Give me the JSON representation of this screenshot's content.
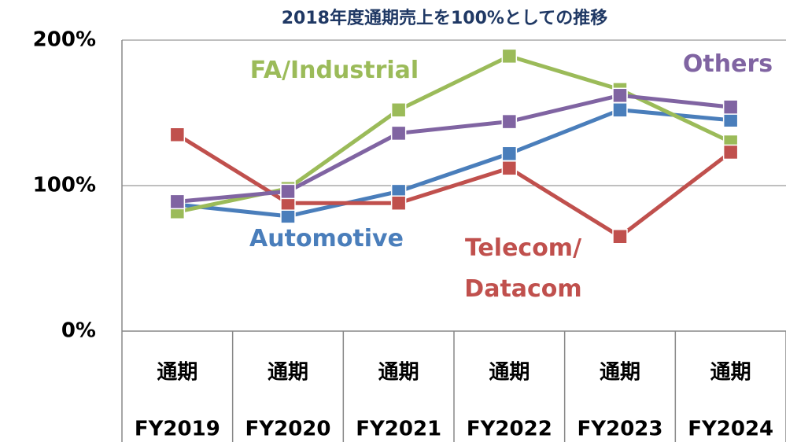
{
  "chart_data": {
    "type": "line",
    "title": "2018年度通期売上を100%としての推移",
    "categories": [
      "FY2019",
      "FY2020",
      "FY2021",
      "FY2022",
      "FY2023",
      "FY2024"
    ],
    "sublabels": [
      "通期",
      "通期",
      "通期",
      "通期",
      "通期",
      "通期"
    ],
    "series": [
      {
        "name": "Automotive",
        "color": "#4a7ebb",
        "values": [
          87,
          79,
          96,
          122,
          152,
          145
        ]
      },
      {
        "name": "FA/Industrial",
        "color": "#9bbb59",
        "values": [
          82,
          98,
          152,
          189,
          166,
          130
        ]
      },
      {
        "name": "Telecom/ Datacom",
        "color": "#c0504d",
        "values": [
          135,
          88,
          88,
          112,
          65,
          123
        ]
      },
      {
        "name": "Others",
        "color": "#8064a2",
        "values": [
          89,
          96,
          136,
          144,
          162,
          154
        ]
      }
    ],
    "ylim": [
      0,
      200
    ],
    "yticks": [
      {
        "value": 0,
        "label": "0%"
      },
      {
        "value": 100,
        "label": "100%"
      },
      {
        "value": 200,
        "label": "200%"
      }
    ],
    "grid": true
  }
}
